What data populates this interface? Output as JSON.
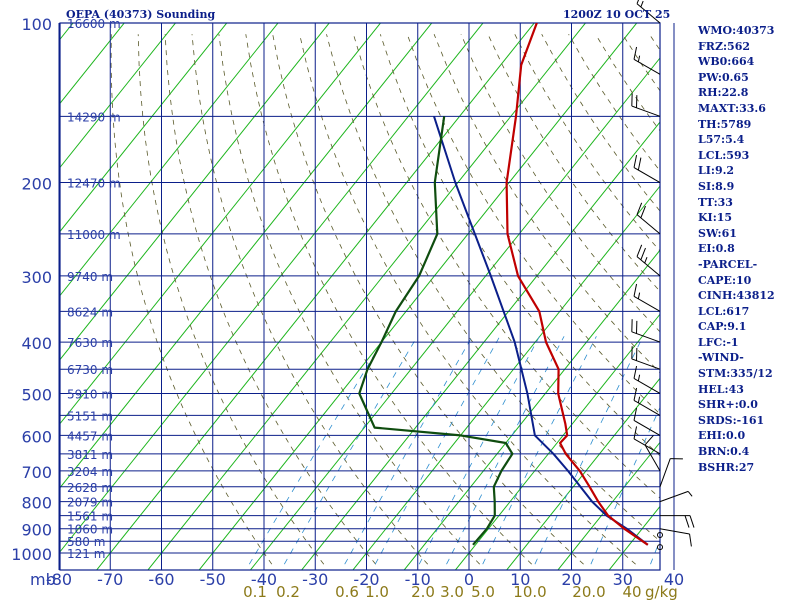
{
  "header": {
    "station_title": "OEPA (40373) Sounding",
    "datetime": "1200Z 10 OCT 25"
  },
  "panel": [
    "WMO:40373",
    "FRZ:562",
    "WB0:664",
    "PW:0.65",
    "RH:22.8",
    "MAXT:33.6",
    "TH:5789",
    "L57:5.4",
    "LCL:593",
    "LI:9.2",
    "SI:8.9",
    "TT:33",
    "KI:15",
    "SW:61",
    "EI:0.8",
    "-PARCEL-",
    "CAPE:10",
    "CINH:43812",
    "LCL:617",
    "CAP:9.1",
    "LFC:-1",
    "-WIND-",
    "STM:335/12",
    "HEL:43",
    "SHR+:0.0",
    "SRDS:-161",
    "EHI:0.0",
    "BRN:0.4",
    "BSHR:27"
  ],
  "colors": {
    "grid": "#0b1f8a",
    "isotherm_skew": "#1db51d",
    "dry_adiabat": "#5a5a2a",
    "mixing_ratio": "#2f8fd0",
    "temperature": "#c00000",
    "dewpoint": "#0f4d0f",
    "parcel": "#0b1f8a",
    "axis_text": "#2b3fa8",
    "mixing_text": "#8c7a1a",
    "barb": "#000000"
  },
  "chart_data": {
    "type": "skew-t",
    "title": "OEPA (40373) Sounding",
    "xlabel": "mb",
    "x_unit_label": "g/kg",
    "pressure_levels_mb": [
      100,
      200,
      300,
      400,
      500,
      600,
      700,
      800,
      900,
      1000
    ],
    "pressure_axis_label": "mb",
    "temperature_ticks": [
      "-80",
      "-70",
      "-60",
      "-50",
      "-40",
      "-30",
      "-20",
      "-10",
      "0",
      "10",
      "20",
      "30",
      "40"
    ],
    "temperature_tick_values": [
      -80,
      -70,
      -60,
      -50,
      -40,
      -30,
      -20,
      -10,
      0,
      10,
      20,
      30,
      40
    ],
    "mixing_ratio_labels": [
      "0.1",
      "0.2",
      "0.6",
      "1.0",
      "2.0",
      "3.0",
      "5.0",
      "10.0",
      "20.0",
      "40"
    ],
    "height_labels": [
      {
        "p": 100,
        "label": "16600 m"
      },
      {
        "p": 150,
        "label": "14290 m"
      },
      {
        "p": 200,
        "label": "12470 m"
      },
      {
        "p": 250,
        "label": "11000 m"
      },
      {
        "p": 300,
        "label": "9740 m"
      },
      {
        "p": 350,
        "label": "8624 m"
      },
      {
        "p": 400,
        "label": "7630 m"
      },
      {
        "p": 450,
        "label": "6730 m"
      },
      {
        "p": 500,
        "label": "5910 m"
      },
      {
        "p": 550,
        "label": "5151 m"
      },
      {
        "p": 600,
        "label": "4457 m"
      },
      {
        "p": 650,
        "label": "3811 m"
      },
      {
        "p": 700,
        "label": "3204 m"
      },
      {
        "p": 750,
        "label": "2628 m"
      },
      {
        "p": 800,
        "label": "2079 m"
      },
      {
        "p": 850,
        "label": "1561 m"
      },
      {
        "p": 900,
        "label": "1060 m"
      },
      {
        "p": 950,
        "label": "580 m"
      },
      {
        "p": 1000,
        "label": "121 m"
      }
    ],
    "temperature_profile": [
      {
        "p": 965,
        "t": 33.6
      },
      {
        "p": 900,
        "t": 26.5
      },
      {
        "p": 850,
        "t": 21.3
      },
      {
        "p": 800,
        "t": 17.2
      },
      {
        "p": 750,
        "t": 13.2
      },
      {
        "p": 700,
        "t": 8.8
      },
      {
        "p": 650,
        "t": 3.4
      },
      {
        "p": 620,
        "t": 0.6
      },
      {
        "p": 600,
        "t": 0.8
      },
      {
        "p": 570,
        "t": -1.4
      },
      {
        "p": 500,
        "t": -7.5
      },
      {
        "p": 450,
        "t": -11.2
      },
      {
        "p": 400,
        "t": -17.9
      },
      {
        "p": 350,
        "t": -24.0
      },
      {
        "p": 300,
        "t": -33.7
      },
      {
        "p": 250,
        "t": -42.3
      },
      {
        "p": 200,
        "t": -50.5
      },
      {
        "p": 150,
        "t": -59.0
      },
      {
        "p": 120,
        "t": -66.0
      },
      {
        "p": 100,
        "t": -69.5
      }
    ],
    "dewpoint_profile": [
      {
        "p": 965,
        "t": -0.5
      },
      {
        "p": 900,
        "t": -0.3
      },
      {
        "p": 850,
        "t": -0.8
      },
      {
        "p": 800,
        "t": -3.0
      },
      {
        "p": 750,
        "t": -5.5
      },
      {
        "p": 700,
        "t": -6.5
      },
      {
        "p": 650,
        "t": -7.0
      },
      {
        "p": 620,
        "t": -10.0
      },
      {
        "p": 600,
        "t": -20.0
      },
      {
        "p": 580,
        "t": -38.0
      },
      {
        "p": 500,
        "t": -46.3
      },
      {
        "p": 450,
        "t": -48.5
      },
      {
        "p": 400,
        "t": -50.0
      },
      {
        "p": 350,
        "t": -52.0
      },
      {
        "p": 300,
        "t": -53.0
      },
      {
        "p": 250,
        "t": -56.0
      },
      {
        "p": 200,
        "t": -64.5
      },
      {
        "p": 150,
        "t": -73.0
      }
    ],
    "parcel_profile": [
      {
        "p": 965,
        "t": 33.6
      },
      {
        "p": 900,
        "t": 27.0
      },
      {
        "p": 850,
        "t": 21.0
      },
      {
        "p": 800,
        "t": 16.0
      },
      {
        "p": 700,
        "t": 6.5
      },
      {
        "p": 650,
        "t": 1.0
      },
      {
        "p": 600,
        "t": -5.5
      },
      {
        "p": 500,
        "t": -13.5
      },
      {
        "p": 400,
        "t": -24.0
      },
      {
        "p": 300,
        "t": -39.0
      },
      {
        "p": 200,
        "t": -60.5
      },
      {
        "p": 150,
        "t": -75.0
      }
    ],
    "wind_barbs": [
      {
        "p": 975,
        "dir": 270,
        "spd": 0
      },
      {
        "p": 925,
        "dir": 270,
        "spd": 0
      },
      {
        "p": 900,
        "dir": 100,
        "spd": 10
      },
      {
        "p": 850,
        "dir": 90,
        "spd": 20
      },
      {
        "p": 800,
        "dir": 70,
        "spd": 5
      },
      {
        "p": 750,
        "dir": 20,
        "spd": 10
      },
      {
        "p": 700,
        "dir": 330,
        "spd": 10
      },
      {
        "p": 650,
        "dir": 300,
        "spd": 10
      },
      {
        "p": 600,
        "dir": 300,
        "spd": 10
      },
      {
        "p": 550,
        "dir": 300,
        "spd": 15
      },
      {
        "p": 500,
        "dir": 300,
        "spd": 15
      },
      {
        "p": 450,
        "dir": 290,
        "spd": 20
      },
      {
        "p": 400,
        "dir": 290,
        "spd": 20
      },
      {
        "p": 350,
        "dir": 300,
        "spd": 15
      },
      {
        "p": 300,
        "dir": 310,
        "spd": 25
      },
      {
        "p": 250,
        "dir": 310,
        "spd": 20
      },
      {
        "p": 200,
        "dir": 300,
        "spd": 20
      },
      {
        "p": 150,
        "dir": 290,
        "spd": 20
      },
      {
        "p": 125,
        "dir": 300,
        "spd": 15
      },
      {
        "p": 100,
        "dir": 310,
        "spd": 15
      }
    ]
  }
}
